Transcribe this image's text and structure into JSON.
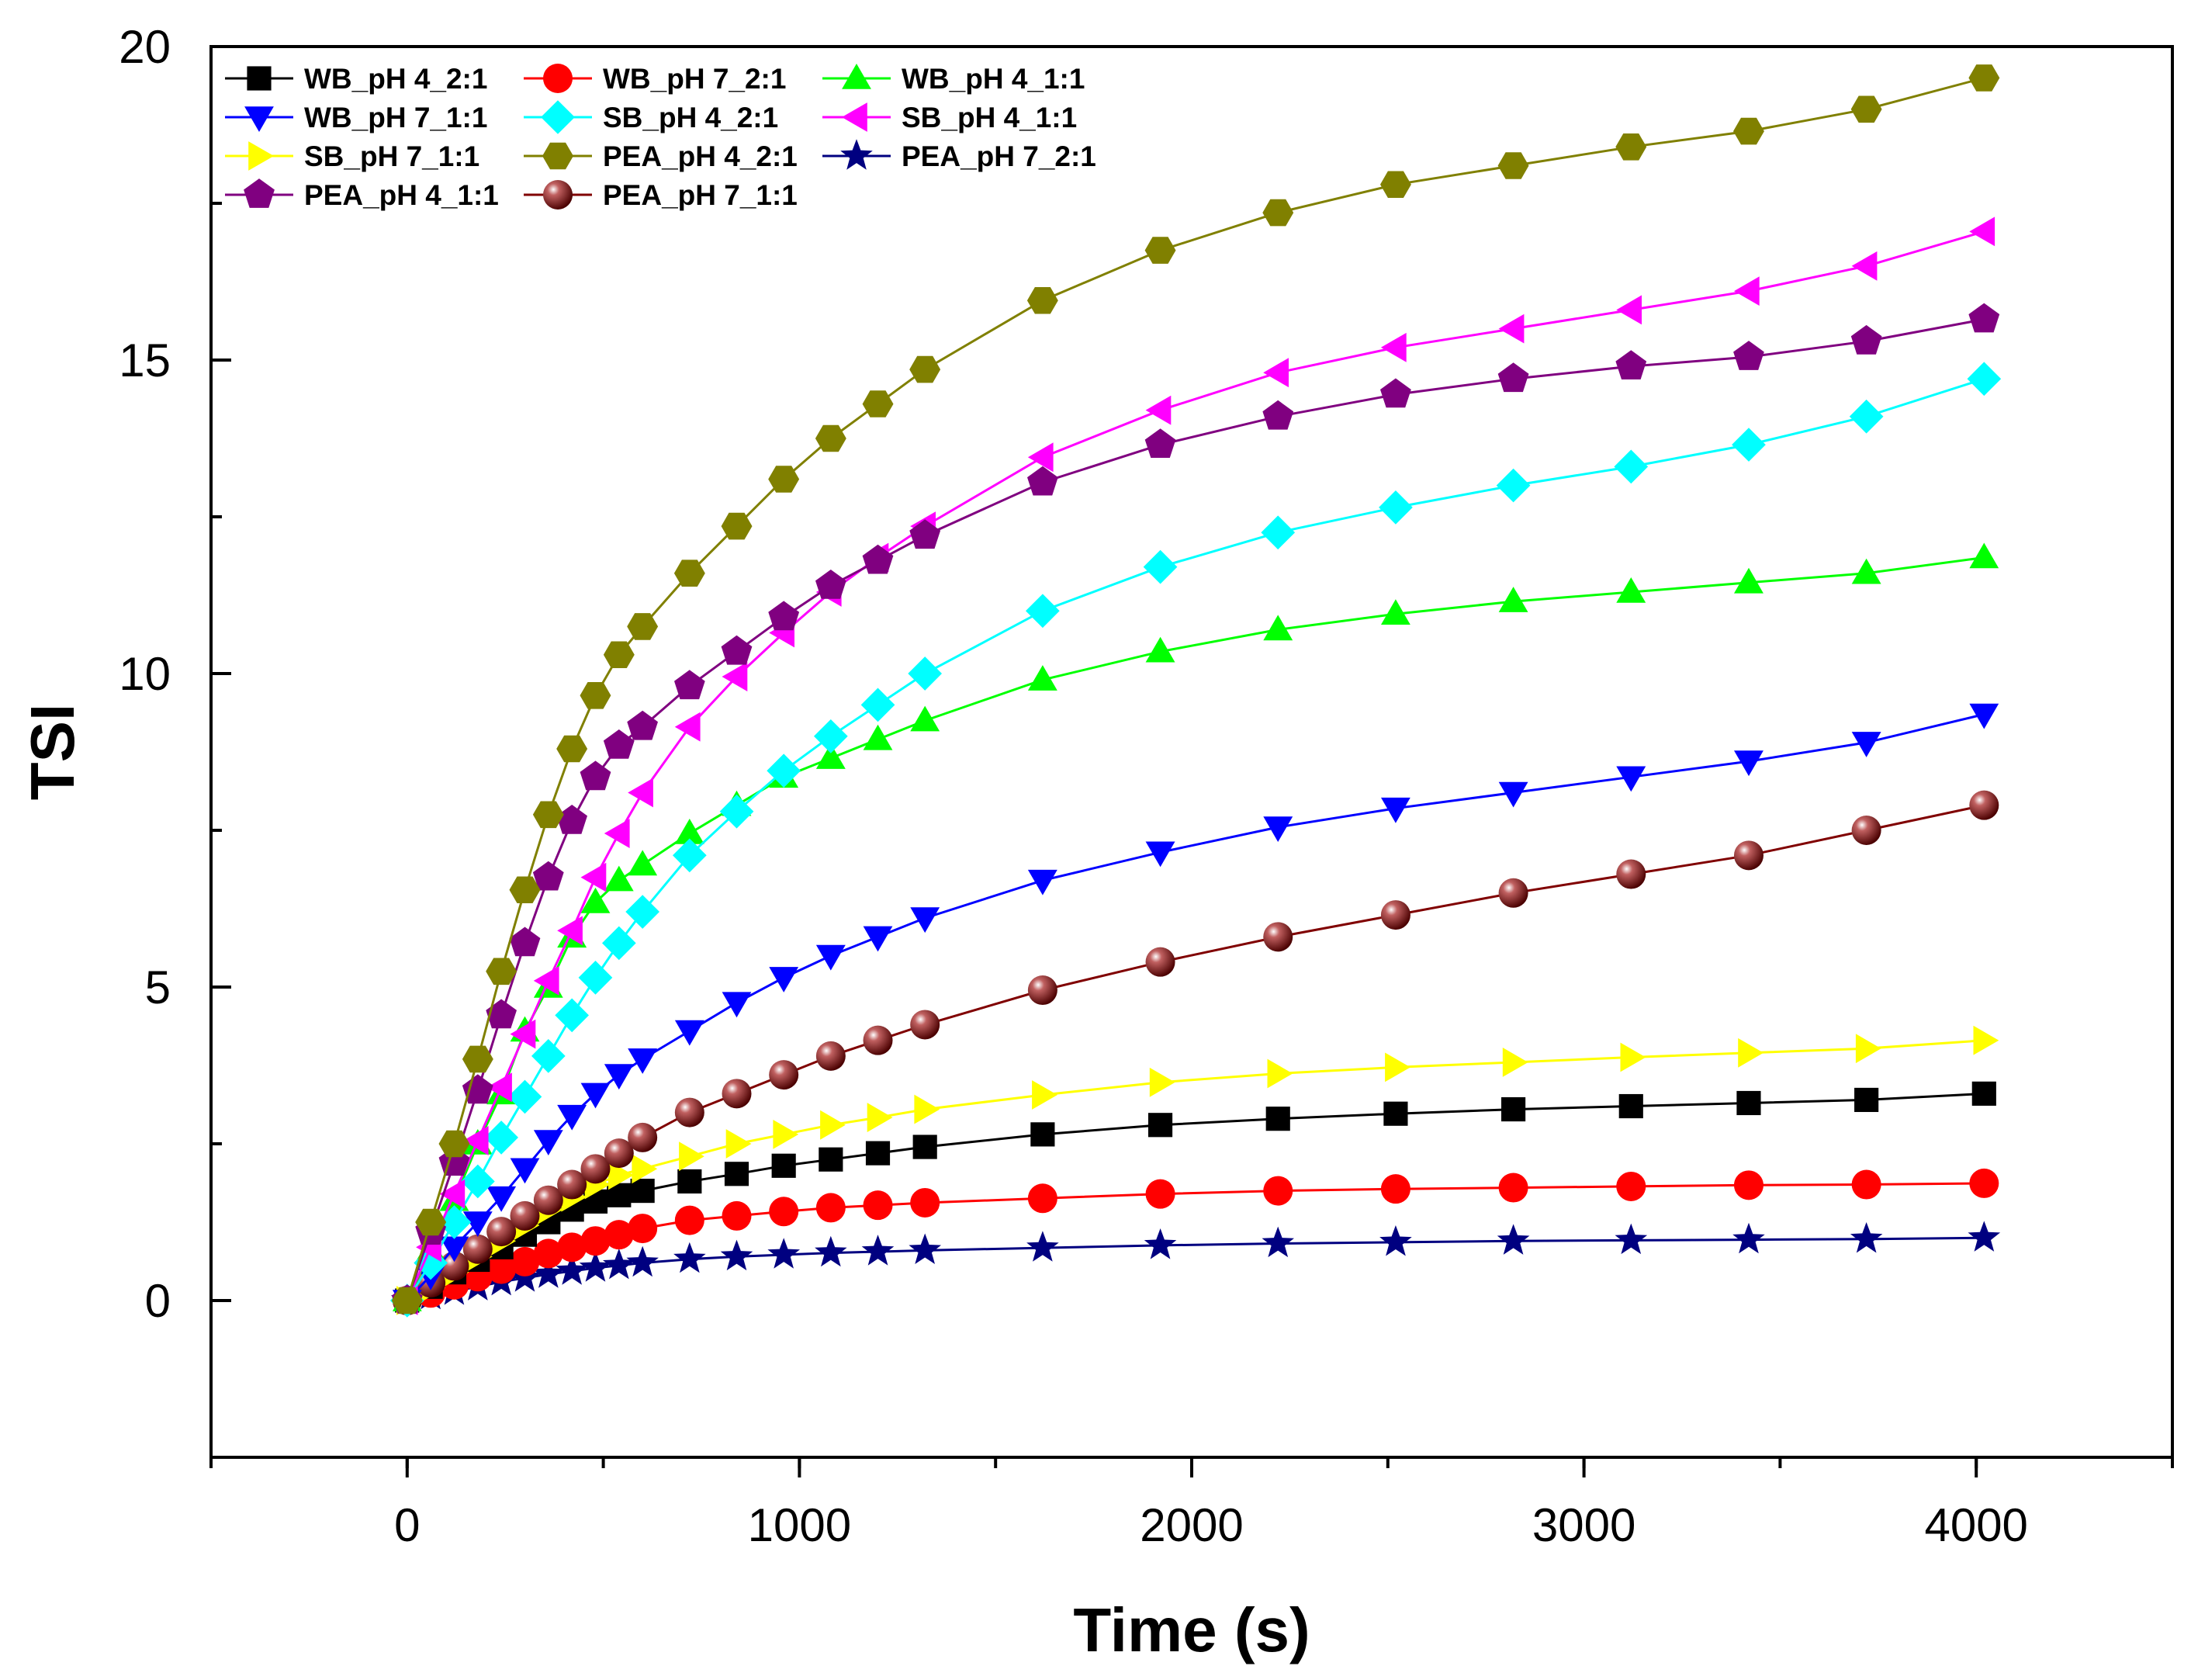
{
  "chart_data": {
    "type": "line",
    "title": "",
    "xlabel": "Time (s)",
    "ylabel": "TSI",
    "xlim": [
      -500,
      4500
    ],
    "ylim": [
      -2.5,
      20
    ],
    "xticks": [
      0,
      1000,
      2000,
      3000,
      4000
    ],
    "xtick_labels": [
      "0",
      "1000",
      "2000",
      "3000",
      "4000"
    ],
    "yticks": [
      0,
      5,
      10,
      15,
      20
    ],
    "ytick_labels": [
      "0",
      "5",
      "10",
      "15",
      "20"
    ],
    "grid": false,
    "legend_position": "top-left",
    "x": [
      0,
      60,
      120,
      180,
      240,
      300,
      360,
      420,
      480,
      540,
      600,
      720,
      840,
      960,
      1080,
      1200,
      1320,
      1620,
      1920,
      2220,
      2520,
      2820,
      3120,
      3420,
      3720,
      4020
    ],
    "series": [
      {
        "name": "WB_pH 4_2:1",
        "color": "#000000",
        "marker": "square",
        "values": [
          0,
          0.22,
          0.45,
          0.65,
          0.85,
          1.05,
          1.25,
          1.45,
          1.58,
          1.68,
          1.75,
          1.9,
          2.02,
          2.15,
          2.25,
          2.35,
          2.45,
          2.65,
          2.8,
          2.9,
          2.98,
          3.05,
          3.1,
          3.15,
          3.2,
          3.3
        ]
      },
      {
        "name": "WB_pH 7_2:1",
        "color": "#ff0000",
        "marker": "circle",
        "values": [
          0,
          0.12,
          0.25,
          0.38,
          0.5,
          0.62,
          0.75,
          0.85,
          0.95,
          1.05,
          1.15,
          1.28,
          1.35,
          1.42,
          1.48,
          1.52,
          1.56,
          1.63,
          1.7,
          1.75,
          1.78,
          1.8,
          1.82,
          1.84,
          1.85,
          1.87
        ]
      },
      {
        "name": "WB_pH 4_1:1",
        "color": "#00ff00",
        "marker": "triangle-up",
        "values": [
          0,
          0.8,
          1.6,
          2.5,
          3.3,
          4.3,
          5.0,
          5.8,
          6.35,
          6.7,
          6.95,
          7.45,
          7.9,
          8.35,
          8.65,
          8.95,
          9.25,
          9.9,
          10.35,
          10.7,
          10.95,
          11.15,
          11.3,
          11.45,
          11.6,
          11.85
        ]
      },
      {
        "name": "WB_pH 7_1:1",
        "color": "#0000ff",
        "marker": "triangle-down",
        "values": [
          0,
          0.4,
          0.85,
          1.25,
          1.65,
          2.1,
          2.55,
          2.95,
          3.3,
          3.6,
          3.85,
          4.3,
          4.75,
          5.15,
          5.5,
          5.8,
          6.1,
          6.7,
          7.15,
          7.55,
          7.85,
          8.1,
          8.35,
          8.6,
          8.9,
          9.35
        ]
      },
      {
        "name": "SB_pH 4_2:1",
        "color": "#00ffff",
        "marker": "diamond",
        "values": [
          0,
          0.6,
          1.25,
          1.9,
          2.6,
          3.25,
          3.9,
          4.55,
          5.15,
          5.7,
          6.2,
          7.1,
          7.8,
          8.45,
          9.0,
          9.5,
          10.0,
          11.0,
          11.7,
          12.25,
          12.65,
          13.0,
          13.3,
          13.65,
          14.1,
          14.7
        ]
      },
      {
        "name": "SB_pH 4_1:1",
        "color": "#ff00ff",
        "marker": "triangle-left",
        "values": [
          0,
          0.85,
          1.7,
          2.55,
          3.4,
          4.25,
          5.1,
          5.9,
          6.75,
          7.45,
          8.1,
          9.15,
          9.95,
          10.65,
          11.3,
          11.85,
          12.35,
          13.45,
          14.2,
          14.8,
          15.2,
          15.5,
          15.8,
          16.1,
          16.5,
          17.05
        ]
      },
      {
        "name": "SB_pH 7_1:1",
        "color": "#ffff00",
        "marker": "triangle-right",
        "values": [
          0,
          0.2,
          0.45,
          0.7,
          0.95,
          1.2,
          1.45,
          1.65,
          1.85,
          2.0,
          2.1,
          2.3,
          2.5,
          2.65,
          2.8,
          2.92,
          3.05,
          3.28,
          3.48,
          3.62,
          3.72,
          3.8,
          3.88,
          3.95,
          4.02,
          4.15
        ]
      },
      {
        "name": "PEA_pH 4_2:1",
        "color": "#808000",
        "marker": "hexagon",
        "values": [
          0,
          1.25,
          2.5,
          3.85,
          5.25,
          6.55,
          7.75,
          8.8,
          9.65,
          10.3,
          10.75,
          11.6,
          12.35,
          13.1,
          13.75,
          14.3,
          14.85,
          15.95,
          16.75,
          17.35,
          17.8,
          18.1,
          18.4,
          18.65,
          19.0,
          19.5
        ]
      },
      {
        "name": "PEA_pH 7_2:1",
        "color": "#000080",
        "marker": "star",
        "values": [
          0,
          0.08,
          0.15,
          0.22,
          0.3,
          0.36,
          0.42,
          0.47,
          0.52,
          0.56,
          0.6,
          0.66,
          0.7,
          0.73,
          0.76,
          0.78,
          0.8,
          0.84,
          0.88,
          0.91,
          0.93,
          0.95,
          0.96,
          0.97,
          0.98,
          1.0
        ]
      },
      {
        "name": "PEA_pH 4_1:1",
        "color": "#800080",
        "marker": "pentagon",
        "values": [
          0,
          1.1,
          2.2,
          3.35,
          4.55,
          5.7,
          6.75,
          7.65,
          8.35,
          8.85,
          9.15,
          9.8,
          10.35,
          10.9,
          11.4,
          11.8,
          12.2,
          13.05,
          13.65,
          14.1,
          14.45,
          14.7,
          14.9,
          15.05,
          15.3,
          15.65
        ]
      },
      {
        "name": "PEA_pH 7_1:1",
        "color": "#800000",
        "marker": "sphere",
        "values": [
          0,
          0.28,
          0.55,
          0.82,
          1.1,
          1.35,
          1.6,
          1.85,
          2.1,
          2.35,
          2.6,
          3.0,
          3.3,
          3.6,
          3.9,
          4.15,
          4.4,
          4.95,
          5.4,
          5.8,
          6.15,
          6.5,
          6.8,
          7.1,
          7.5,
          7.9
        ]
      }
    ]
  }
}
